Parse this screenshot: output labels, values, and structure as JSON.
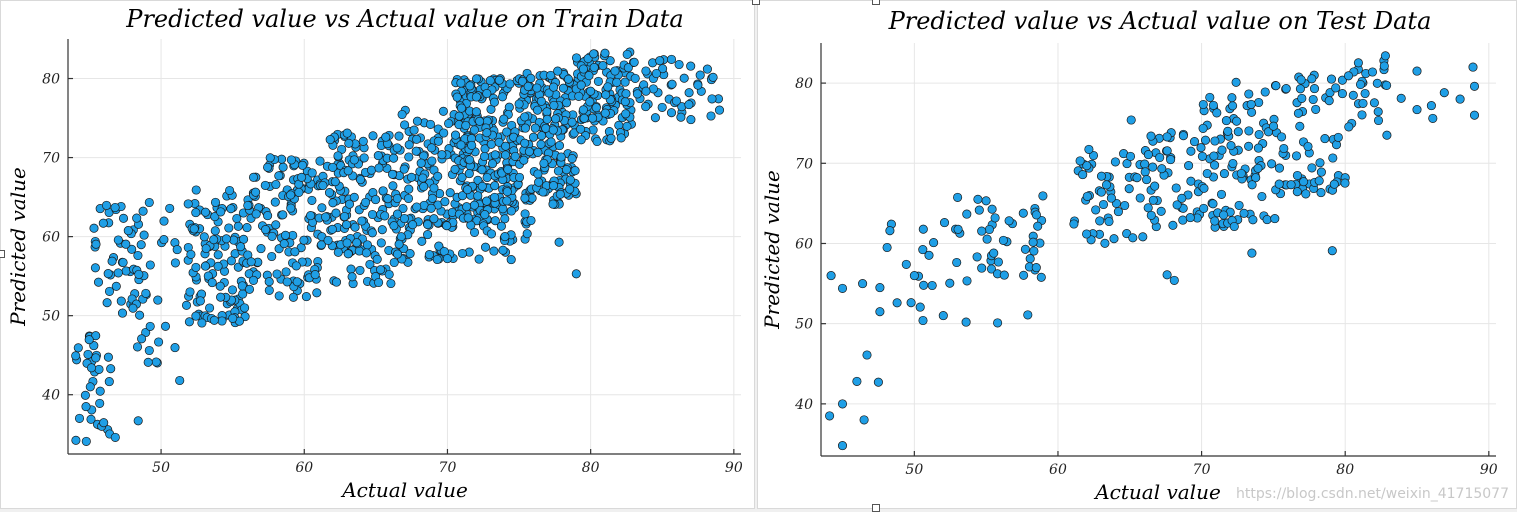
{
  "colors": {
    "marker": "#1f9fe6",
    "marker_edge": "#1a1a1a",
    "grid": "#e6e6e6"
  },
  "watermark": "https://blog.csdn.net/weixin_41715077",
  "chart_data": [
    {
      "type": "scatter",
      "title": "Predicted value vs Actual value on Train Data",
      "xlabel": "Actual value",
      "ylabel": "Predicted value",
      "xlim": [
        43.5,
        90.5
      ],
      "ylim": [
        32.5,
        85
      ],
      "xticks": [
        50,
        60,
        70,
        80,
        90
      ],
      "yticks": [
        40,
        50,
        60,
        70,
        80
      ],
      "grid": true,
      "legend": false,
      "clusters": [
        {
          "x": [
            44,
            46.5
          ],
          "y": [
            34,
            48
          ],
          "n": 35
        },
        {
          "x": [
            45,
            48.5
          ],
          "y": [
            50,
            65
          ],
          "n": 45
        },
        {
          "x": [
            48,
            51
          ],
          "y": [
            44,
            65
          ],
          "n": 30
        },
        {
          "x": [
            51,
            56
          ],
          "y": [
            49,
            66
          ],
          "n": 120
        },
        {
          "x": [
            56,
            61
          ],
          "y": [
            52,
            70
          ],
          "n": 130
        },
        {
          "x": [
            61,
            66
          ],
          "y": [
            58,
            73
          ],
          "n": 140
        },
        {
          "x": [
            62,
            68
          ],
          "y": [
            54,
            58
          ],
          "n": 25
        },
        {
          "x": [
            66,
            70.5
          ],
          "y": [
            57,
            76
          ],
          "n": 140
        },
        {
          "x": [
            70.5,
            75
          ],
          "y": [
            62,
            80
          ],
          "n": 260
        },
        {
          "x": [
            71,
            76
          ],
          "y": [
            56,
            63
          ],
          "n": 30
        },
        {
          "x": [
            75,
            79
          ],
          "y": [
            64,
            81
          ],
          "n": 200
        },
        {
          "x": [
            79,
            83
          ],
          "y": [
            72,
            83.5
          ],
          "n": 120
        },
        {
          "x": [
            83,
            89
          ],
          "y": [
            75,
            82.5
          ],
          "n": 50
        }
      ],
      "points": [
        {
          "x": 79.0,
          "y": 55.3
        },
        {
          "x": 51.3,
          "y": 41.8
        },
        {
          "x": 49.1,
          "y": 44.1
        },
        {
          "x": 44.3,
          "y": 37.0
        },
        {
          "x": 46.8,
          "y": 34.6
        },
        {
          "x": 48.4,
          "y": 36.7
        },
        {
          "x": 77.8,
          "y": 59.3
        },
        {
          "x": 63.0,
          "y": 73.1
        },
        {
          "x": 59.1,
          "y": 69.7
        },
        {
          "x": 89.0,
          "y": 76.0
        },
        {
          "x": 87.0,
          "y": 74.8
        },
        {
          "x": 81.0,
          "y": 83.2
        }
      ]
    },
    {
      "type": "scatter",
      "title": "Predicted value vs Actual value on Test Data",
      "xlabel": "Actual value",
      "ylabel": "Predicted value",
      "xlim": [
        43.5,
        90.5
      ],
      "ylim": [
        33.5,
        85
      ],
      "xticks": [
        50,
        60,
        70,
        80,
        90
      ],
      "yticks": [
        40,
        50,
        60,
        70,
        80
      ],
      "grid": true,
      "legend": false,
      "clusters": [
        {
          "x": [
            49,
            53
          ],
          "y": [
            50,
            62
          ],
          "n": 14
        },
        {
          "x": [
            53,
            59
          ],
          "y": [
            55,
            66
          ],
          "n": 45
        },
        {
          "x": [
            61,
            66
          ],
          "y": [
            60,
            72
          ],
          "n": 50
        },
        {
          "x": [
            66,
            70
          ],
          "y": [
            62,
            74
          ],
          "n": 50
        },
        {
          "x": [
            70,
            75
          ],
          "y": [
            62,
            79
          ],
          "n": 90
        },
        {
          "x": [
            75,
            80
          ],
          "y": [
            66,
            81
          ],
          "n": 70
        },
        {
          "x": [
            80,
            83
          ],
          "y": [
            74,
            83
          ],
          "n": 25
        }
      ],
      "points": [
        {
          "x": 44.1,
          "y": 38.5
        },
        {
          "x": 44.2,
          "y": 56.0
        },
        {
          "x": 45.0,
          "y": 54.4
        },
        {
          "x": 45.0,
          "y": 40.0
        },
        {
          "x": 45.0,
          "y": 34.8
        },
        {
          "x": 46.0,
          "y": 42.8
        },
        {
          "x": 46.5,
          "y": 38.0
        },
        {
          "x": 46.7,
          "y": 46.1
        },
        {
          "x": 47.5,
          "y": 42.7
        },
        {
          "x": 47.6,
          "y": 51.5
        },
        {
          "x": 46.4,
          "y": 55.0
        },
        {
          "x": 47.6,
          "y": 54.5
        },
        {
          "x": 48.1,
          "y": 59.5
        },
        {
          "x": 48.4,
          "y": 62.4
        },
        {
          "x": 48.3,
          "y": 61.6
        },
        {
          "x": 48.8,
          "y": 52.6
        },
        {
          "x": 50.0,
          "y": 56.0
        },
        {
          "x": 50.6,
          "y": 50.4
        },
        {
          "x": 52.1,
          "y": 62.6
        },
        {
          "x": 53.6,
          "y": 50.2
        },
        {
          "x": 55.8,
          "y": 50.1
        },
        {
          "x": 57.9,
          "y": 51.1
        },
        {
          "x": 65.1,
          "y": 75.4
        },
        {
          "x": 66.5,
          "y": 63.5
        },
        {
          "x": 67.6,
          "y": 56.1
        },
        {
          "x": 68.1,
          "y": 55.4
        },
        {
          "x": 72.4,
          "y": 80.1
        },
        {
          "x": 73.5,
          "y": 58.8
        },
        {
          "x": 75.1,
          "y": 63.1
        },
        {
          "x": 79.1,
          "y": 59.1
        },
        {
          "x": 82.8,
          "y": 83.4
        },
        {
          "x": 82.9,
          "y": 73.5
        },
        {
          "x": 83.9,
          "y": 78.1
        },
        {
          "x": 85.0,
          "y": 81.5
        },
        {
          "x": 85.0,
          "y": 76.7
        },
        {
          "x": 86.1,
          "y": 75.6
        },
        {
          "x": 86.0,
          "y": 77.2
        },
        {
          "x": 86.9,
          "y": 78.8
        },
        {
          "x": 88.0,
          "y": 78.0
        },
        {
          "x": 88.9,
          "y": 82.0
        },
        {
          "x": 89.0,
          "y": 79.6
        },
        {
          "x": 89.0,
          "y": 76.0
        }
      ]
    }
  ]
}
